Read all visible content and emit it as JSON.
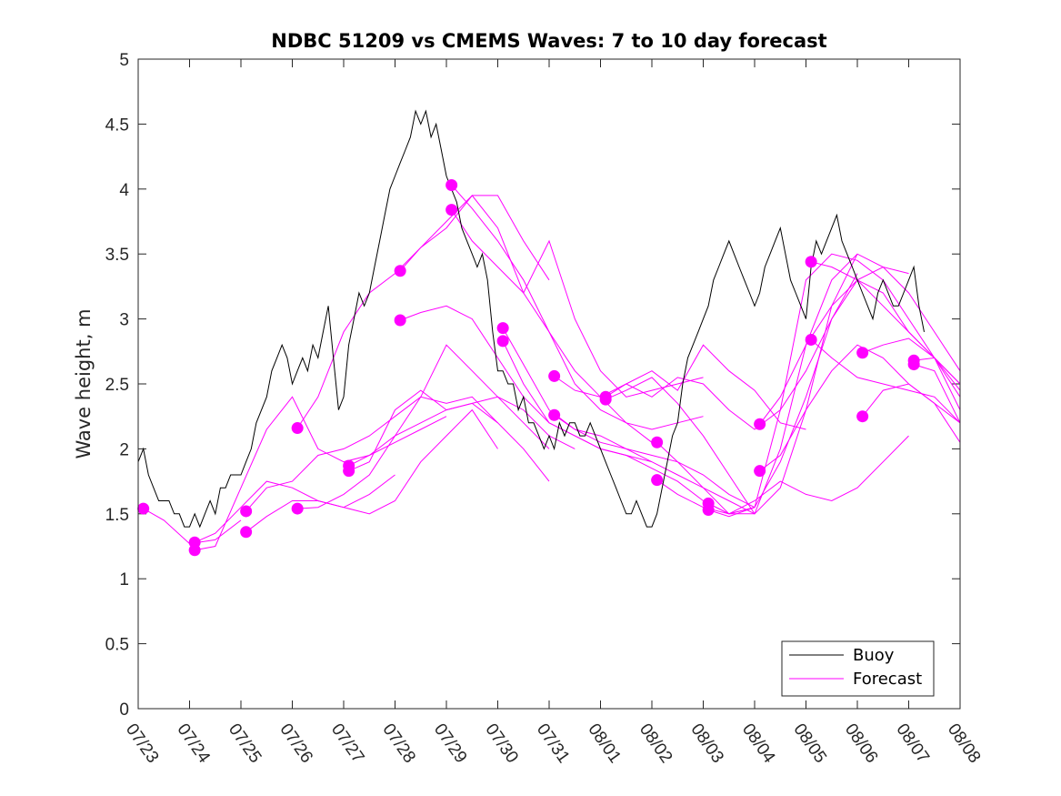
{
  "chart_data": {
    "type": "line",
    "title": "NDBC 51209 vs CMEMS Waves: 7 to 10 day forecast",
    "xlabel": "",
    "ylabel": "Wave height, m",
    "xlim": [
      "07/23",
      "08/08"
    ],
    "ylim": [
      0,
      5
    ],
    "x_ticks": [
      "07/23",
      "07/24",
      "07/25",
      "07/26",
      "07/27",
      "07/28",
      "07/29",
      "07/30",
      "07/31",
      "08/01",
      "08/02",
      "08/03",
      "08/04",
      "08/05",
      "08/06",
      "08/07",
      "08/08"
    ],
    "y_ticks": [
      "0",
      "0.5",
      "1",
      "1.5",
      "2",
      "2.5",
      "3",
      "3.5",
      "4",
      "4.5",
      "5"
    ],
    "x_units": "days since 07/23",
    "legend": {
      "position": "bottom-right",
      "entries": [
        "Buoy",
        "Forecast"
      ]
    },
    "colors": {
      "buoy": "#000000",
      "forecast": "#ff00ff"
    },
    "series": [
      {
        "name": "Buoy",
        "x": [
          0.0,
          0.1,
          0.2,
          0.3,
          0.4,
          0.5,
          0.6,
          0.7,
          0.8,
          0.9,
          1.0,
          1.1,
          1.2,
          1.3,
          1.4,
          1.5,
          1.6,
          1.7,
          1.8,
          1.9,
          2.0,
          2.1,
          2.2,
          2.3,
          2.4,
          2.5,
          2.6,
          2.7,
          2.8,
          2.9,
          3.0,
          3.1,
          3.2,
          3.3,
          3.4,
          3.5,
          3.6,
          3.7,
          3.8,
          3.9,
          4.0,
          4.1,
          4.2,
          4.3,
          4.4,
          4.5,
          4.6,
          4.7,
          4.8,
          4.9,
          5.0,
          5.1,
          5.2,
          5.3,
          5.4,
          5.5,
          5.6,
          5.7,
          5.8,
          5.9,
          6.0,
          6.1,
          6.2,
          6.3,
          6.4,
          6.5,
          6.6,
          6.7,
          6.8,
          6.9,
          7.0,
          7.1,
          7.2,
          7.3,
          7.4,
          7.5,
          7.6,
          7.7,
          7.8,
          7.9,
          8.0,
          8.1,
          8.2,
          8.3,
          8.4,
          8.5,
          8.6,
          8.7,
          8.8,
          8.9,
          9.0,
          9.1,
          9.2,
          9.3,
          9.4,
          9.5,
          9.6,
          9.7,
          9.8,
          9.9,
          10.0,
          10.1,
          10.2,
          10.3,
          10.4,
          10.5,
          10.6,
          10.7,
          10.8,
          10.9,
          11.0,
          11.1,
          11.2,
          11.3,
          11.4,
          11.5,
          11.6,
          11.7,
          11.8,
          11.9,
          12.0,
          12.1,
          12.2,
          12.3,
          12.4,
          12.5,
          12.6,
          12.7,
          12.8,
          12.9,
          13.0,
          13.1,
          13.2,
          13.3,
          13.4,
          13.5,
          13.6,
          13.7,
          13.8,
          13.9,
          14.0,
          14.1,
          14.2,
          14.3,
          14.4,
          14.5,
          14.6,
          14.7,
          14.8,
          14.9,
          15.0,
          15.1,
          15.2,
          15.3
        ],
        "y": [
          1.9,
          2.0,
          1.8,
          1.7,
          1.6,
          1.6,
          1.6,
          1.5,
          1.5,
          1.4,
          1.4,
          1.5,
          1.4,
          1.5,
          1.6,
          1.5,
          1.7,
          1.7,
          1.8,
          1.8,
          1.8,
          1.9,
          2.0,
          2.2,
          2.3,
          2.4,
          2.6,
          2.7,
          2.8,
          2.7,
          2.5,
          2.6,
          2.7,
          2.6,
          2.8,
          2.7,
          2.9,
          3.1,
          2.7,
          2.3,
          2.4,
          2.8,
          3.0,
          3.2,
          3.1,
          3.2,
          3.4,
          3.6,
          3.8,
          4.0,
          4.1,
          4.2,
          4.3,
          4.4,
          4.6,
          4.5,
          4.6,
          4.4,
          4.5,
          4.3,
          4.1,
          4.0,
          3.9,
          3.7,
          3.6,
          3.5,
          3.4,
          3.5,
          3.3,
          2.9,
          2.6,
          2.6,
          2.5,
          2.5,
          2.3,
          2.4,
          2.2,
          2.2,
          2.1,
          2.0,
          2.1,
          2.0,
          2.2,
          2.1,
          2.2,
          2.2,
          2.1,
          2.1,
          2.2,
          2.1,
          2.0,
          1.9,
          1.8,
          1.7,
          1.6,
          1.5,
          1.5,
          1.6,
          1.5,
          1.4,
          1.4,
          1.5,
          1.7,
          1.9,
          2.1,
          2.2,
          2.5,
          2.7,
          2.8,
          2.9,
          3.0,
          3.1,
          3.3,
          3.4,
          3.5,
          3.6,
          3.5,
          3.4,
          3.3,
          3.2,
          3.1,
          3.2,
          3.4,
          3.5,
          3.6,
          3.7,
          3.5,
          3.3,
          3.2,
          3.1,
          3.0,
          3.4,
          3.6,
          3.5,
          3.6,
          3.7,
          3.8,
          3.6,
          3.5,
          3.4,
          3.3,
          3.2,
          3.1,
          3.0,
          3.2,
          3.3,
          3.2,
          3.1,
          3.1,
          3.2,
          3.3,
          3.4,
          3.1,
          2.9
        ]
      },
      {
        "name": "Forecast",
        "x": [
          0.1,
          0.5,
          1.0,
          1.5,
          2.0
        ],
        "y": [
          1.54,
          1.45,
          1.27,
          1.3,
          1.45
        ]
      },
      {
        "name": "",
        "x": [
          1.1,
          1.5,
          2.0,
          2.5,
          3.0,
          3.5,
          4.0,
          4.5,
          5.0
        ],
        "y": [
          1.28,
          1.35,
          1.55,
          1.75,
          1.7,
          1.6,
          1.55,
          1.65,
          1.8
        ]
      },
      {
        "name": "",
        "x": [
          1.1,
          1.5,
          2.0,
          2.5,
          3.0,
          3.5,
          4.0,
          4.5,
          5.0,
          5.5,
          6.0
        ],
        "y": [
          1.22,
          1.25,
          1.7,
          2.15,
          2.4,
          2.0,
          1.9,
          1.95,
          2.05,
          2.15,
          2.25
        ]
      },
      {
        "name": "",
        "x": [
          2.1,
          2.5,
          3.0,
          3.5,
          4.0,
          4.5,
          5.0,
          5.5,
          6.0,
          6.5,
          7.0
        ],
        "y": [
          1.36,
          1.48,
          1.6,
          1.6,
          1.55,
          1.5,
          1.6,
          1.9,
          2.1,
          2.3,
          2.0
        ]
      },
      {
        "name": "",
        "x": [
          2.1,
          2.5,
          3.0,
          3.5,
          4.0,
          4.5,
          5.0,
          5.5,
          6.0,
          6.5,
          7.0
        ],
        "y": [
          1.52,
          1.7,
          1.75,
          1.95,
          2.0,
          2.1,
          2.25,
          2.4,
          2.35,
          2.4,
          2.2
        ]
      },
      {
        "name": "",
        "x": [
          3.1,
          3.5,
          4.0,
          4.5,
          5.0,
          5.5,
          6.0,
          6.5,
          7.0,
          7.5,
          8.0
        ],
        "y": [
          1.54,
          1.55,
          1.65,
          1.8,
          2.1,
          2.4,
          2.8,
          2.6,
          2.4,
          2.2,
          2.0
        ]
      },
      {
        "name": "",
        "x": [
          3.1,
          3.5,
          4.0,
          4.5,
          5.0,
          5.5,
          6.0,
          6.5,
          7.0,
          7.5,
          8.0
        ],
        "y": [
          2.16,
          2.4,
          2.9,
          3.2,
          3.35,
          3.55,
          3.7,
          3.95,
          3.95,
          3.6,
          3.3
        ]
      },
      {
        "name": "",
        "x": [
          4.1,
          4.5,
          5.0,
          5.5,
          6.0,
          6.5,
          7.0,
          7.5,
          8.0
        ],
        "y": [
          1.83,
          1.9,
          2.3,
          2.45,
          2.3,
          2.35,
          2.2,
          2.0,
          1.75
        ]
      },
      {
        "name": "",
        "x": [
          4.1,
          4.5,
          5.0,
          5.5,
          6.0,
          6.5,
          7.0,
          7.5,
          8.0,
          8.5
        ],
        "y": [
          1.87,
          1.95,
          2.1,
          2.2,
          2.3,
          2.35,
          2.4,
          2.3,
          2.1,
          2.0
        ]
      },
      {
        "name": "",
        "x": [
          5.1,
          5.5,
          6.0,
          6.5,
          7.0,
          7.5,
          8.0,
          8.5,
          9.0,
          9.5,
          10.0
        ],
        "y": [
          2.99,
          3.05,
          3.1,
          3.0,
          2.7,
          2.4,
          2.2,
          2.1,
          2.0,
          1.95,
          1.9
        ]
      },
      {
        "name": "",
        "x": [
          5.1,
          5.5,
          6.0,
          6.5,
          7.0,
          7.5,
          8.0,
          8.5,
          9.0,
          9.5,
          10.0
        ],
        "y": [
          3.37,
          3.55,
          3.75,
          3.95,
          3.7,
          3.2,
          2.9,
          2.6,
          2.4,
          2.2,
          2.05
        ]
      },
      {
        "name": "",
        "x": [
          6.1,
          6.5,
          7.0,
          7.5,
          8.0,
          8.5,
          9.0,
          9.5,
          10.0,
          10.5,
          11.0
        ],
        "y": [
          4.03,
          3.85,
          3.6,
          3.3,
          2.9,
          2.5,
          2.3,
          2.2,
          2.15,
          2.2,
          2.25
        ]
      },
      {
        "name": "",
        "x": [
          6.1,
          6.5,
          7.0,
          7.5,
          8.0,
          8.5,
          9.0,
          9.5,
          10.0,
          10.5,
          11.0
        ],
        "y": [
          3.84,
          3.6,
          3.4,
          3.2,
          3.6,
          3.0,
          2.6,
          2.4,
          2.45,
          2.5,
          2.55
        ]
      },
      {
        "name": "",
        "x": [
          7.1,
          7.5,
          8.0,
          8.5,
          9.0,
          9.5,
          10.0,
          10.5,
          11.0,
          11.5,
          12.0
        ],
        "y": [
          2.93,
          2.65,
          2.3,
          2.15,
          2.05,
          2.0,
          1.95,
          1.9,
          1.8,
          1.65,
          1.55
        ]
      },
      {
        "name": "",
        "x": [
          7.1,
          7.5,
          8.0,
          8.5,
          9.0,
          9.5,
          10.0,
          10.5,
          11.0,
          11.5,
          12.0
        ],
        "y": [
          2.83,
          2.5,
          2.2,
          2.1,
          2.0,
          1.95,
          1.85,
          1.75,
          1.6,
          1.5,
          1.55
        ]
      },
      {
        "name": "",
        "x": [
          8.1,
          8.5,
          9.0,
          9.5,
          10.0,
          10.5,
          11.0,
          11.5,
          12.0,
          12.5,
          13.0
        ],
        "y": [
          2.56,
          2.45,
          2.4,
          2.5,
          2.6,
          2.45,
          2.8,
          2.6,
          2.45,
          2.2,
          2.15
        ]
      },
      {
        "name": "",
        "x": [
          8.1,
          8.5,
          9.0,
          9.5,
          10.0,
          10.5,
          11.0,
          11.5,
          12.0
        ],
        "y": [
          2.26,
          2.15,
          2.1,
          2.0,
          1.9,
          1.8,
          1.7,
          1.6,
          1.5
        ]
      },
      {
        "name": "",
        "x": [
          9.1,
          9.5,
          10.0,
          10.5,
          11.0,
          11.5,
          12.0,
          12.5,
          13.0,
          13.5,
          14.0
        ],
        "y": [
          2.4,
          2.5,
          2.4,
          2.55,
          2.5,
          2.3,
          2.15,
          2.3,
          2.6,
          3.0,
          3.35
        ]
      },
      {
        "name": "",
        "x": [
          9.1,
          9.5,
          10.0,
          10.5,
          11.0,
          11.5,
          12.0,
          12.5,
          13.0,
          13.5,
          14.0
        ],
        "y": [
          2.38,
          2.45,
          2.55,
          2.35,
          2.1,
          1.8,
          1.5,
          1.7,
          2.3,
          3.1,
          3.5
        ]
      },
      {
        "name": "",
        "x": [
          10.1,
          10.5,
          11.0,
          11.5,
          12.0,
          12.5,
          13.0,
          13.5,
          14.0,
          14.5,
          15.0
        ],
        "y": [
          2.05,
          1.9,
          1.7,
          1.5,
          1.55,
          1.9,
          2.4,
          3.0,
          3.3,
          3.4,
          3.35
        ]
      },
      {
        "name": "",
        "x": [
          10.1,
          10.5,
          11.0,
          11.5,
          12.0,
          12.5,
          13.0,
          13.5,
          14.0,
          14.5,
          15.0
        ],
        "y": [
          1.76,
          1.65,
          1.55,
          1.5,
          1.6,
          1.75,
          1.65,
          1.6,
          1.7,
          1.9,
          2.1
        ]
      },
      {
        "name": "",
        "x": [
          11.1,
          11.5,
          12.0,
          12.5,
          13.0,
          13.5,
          14.0,
          14.5,
          15.0,
          15.5,
          16.0
        ],
        "y": [
          1.58,
          1.5,
          1.5,
          2.0,
          2.8,
          3.3,
          3.5,
          3.4,
          3.2,
          2.9,
          2.6
        ]
      },
      {
        "name": "",
        "x": [
          11.1,
          11.5,
          12.0,
          12.5,
          13.0,
          13.5,
          14.0,
          14.5,
          15.0,
          15.5,
          16.0
        ],
        "y": [
          1.53,
          1.48,
          1.55,
          2.3,
          3.3,
          3.5,
          3.45,
          3.3,
          3.0,
          2.7,
          2.45
        ]
      },
      {
        "name": "",
        "x": [
          12.1,
          12.5,
          13.0,
          13.5,
          14.0,
          14.5,
          15.0,
          15.5,
          16.0
        ],
        "y": [
          2.19,
          2.4,
          2.8,
          3.1,
          3.3,
          3.2,
          2.9,
          2.7,
          2.4
        ]
      },
      {
        "name": "",
        "x": [
          12.1,
          12.5,
          13.0,
          13.5,
          14.0,
          14.5,
          15.0,
          15.5,
          16.0
        ],
        "y": [
          1.83,
          1.95,
          2.3,
          2.6,
          2.8,
          2.7,
          2.5,
          2.35,
          2.2
        ]
      },
      {
        "name": "",
        "x": [
          13.1,
          13.5,
          14.0,
          14.5,
          15.0,
          15.5,
          16.0
        ],
        "y": [
          3.44,
          3.4,
          3.3,
          3.1,
          2.9,
          2.7,
          2.5
        ]
      },
      {
        "name": "",
        "x": [
          13.1,
          13.5,
          14.0,
          14.5,
          15.0,
          15.5,
          16.0
        ],
        "y": [
          2.84,
          2.7,
          2.55,
          2.5,
          2.45,
          2.4,
          2.2
        ]
      },
      {
        "name": "",
        "x": [
          14.1,
          14.5,
          15.0,
          15.5,
          16.0
        ],
        "y": [
          2.74,
          2.8,
          2.85,
          2.7,
          2.5
        ]
      },
      {
        "name": "",
        "x": [
          14.1,
          14.5,
          15.0,
          15.5,
          16.0
        ],
        "y": [
          2.25,
          2.45,
          2.5,
          2.35,
          2.05
        ]
      },
      {
        "name": "",
        "x": [
          15.1,
          15.5,
          16.0
        ],
        "y": [
          2.68,
          2.7,
          2.3
        ]
      },
      {
        "name": "",
        "x": [
          15.1,
          15.5,
          16.0
        ],
        "y": [
          2.65,
          2.6,
          2.2
        ]
      }
    ]
  }
}
